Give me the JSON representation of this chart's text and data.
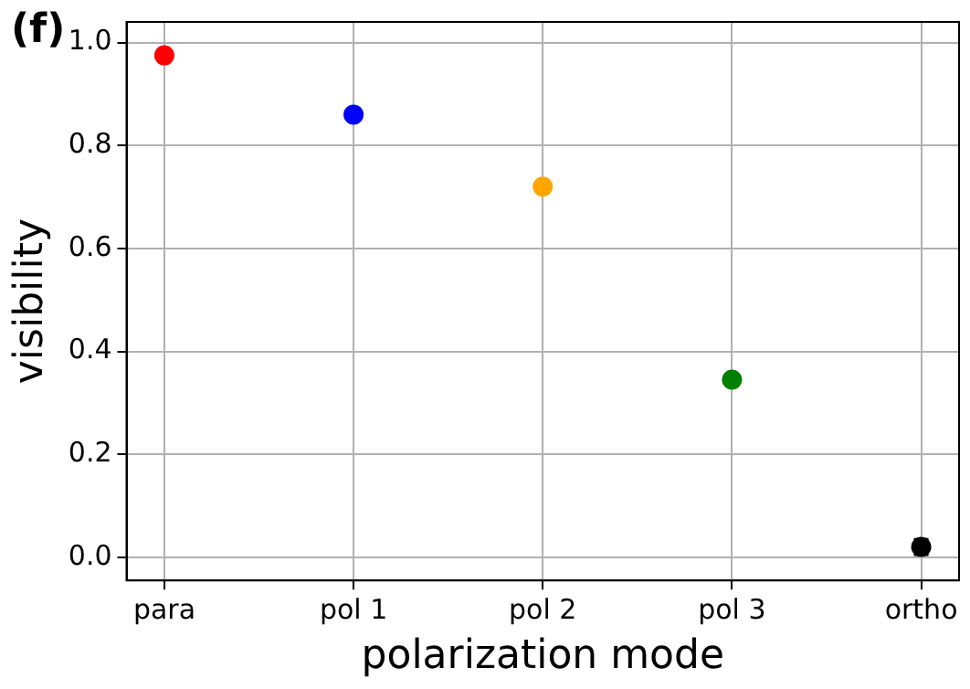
{
  "chart_data": {
    "type": "scatter",
    "title": "(f)",
    "xlabel": "polarization mode",
    "ylabel": "visibility",
    "categories": [
      "para",
      "pol 1",
      "pol 2",
      "pol 3",
      "ortho"
    ],
    "values": [
      0.975,
      0.86,
      0.72,
      0.345,
      0.02
    ],
    "colors": [
      "#ff0000",
      "#0000ff",
      "#ffa500",
      "#008000",
      "#000000"
    ],
    "errors": [
      null,
      null,
      null,
      null,
      0.015
    ],
    "ylim": [
      -0.045,
      1.04
    ],
    "yticks": [
      {
        "value": 0,
        "label": "0.0"
      },
      0.2,
      0.4,
      0.6,
      0.8,
      {
        "value": 1,
        "label": "1.0"
      }
    ],
    "grid": true,
    "marker": "circle"
  }
}
